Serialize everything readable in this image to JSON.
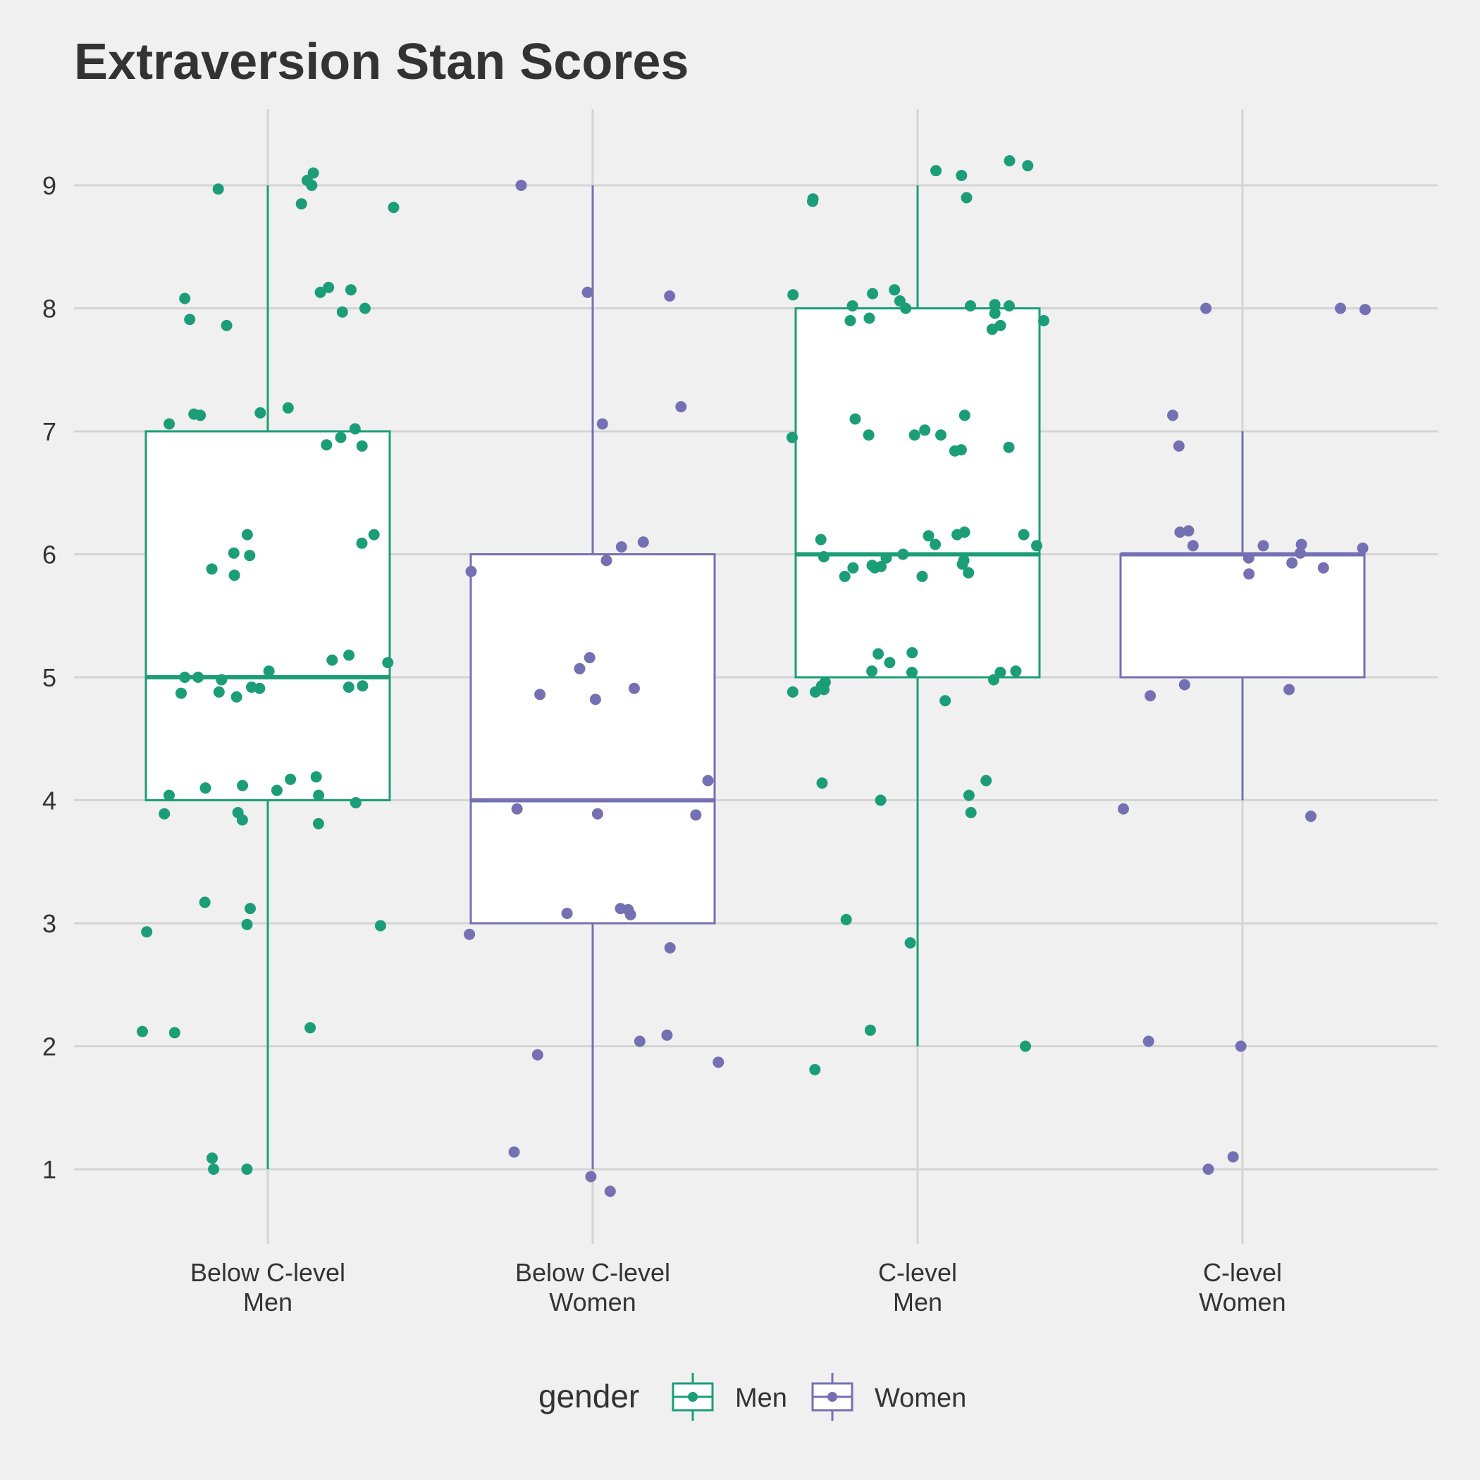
{
  "chart_data": {
    "type": "box",
    "title": "Extraversion Stan Scores",
    "xlabel": "",
    "ylabel": "",
    "ylim": [
      0.4,
      9.6
    ],
    "yticks": [
      1,
      2,
      3,
      4,
      5,
      6,
      7,
      8,
      9
    ],
    "grid": true,
    "legend": {
      "title": "gender",
      "placement": "bottom",
      "entries": [
        {
          "label": "Men",
          "color": "#1b9e77"
        },
        {
          "label": "Women",
          "color": "#7570b3"
        }
      ]
    },
    "categories": [
      {
        "label_line1": "Below C-level",
        "label_line2": "Men",
        "gender": "Men"
      },
      {
        "label_line1": "Below C-level",
        "label_line2": "Women",
        "gender": "Women"
      },
      {
        "label_line1": "C-level",
        "label_line2": "Men",
        "gender": "Men"
      },
      {
        "label_line1": "C-level",
        "label_line2": "Women",
        "gender": "Women"
      }
    ],
    "boxes": [
      {
        "category": 0,
        "lower_whisker": 1,
        "q1": 4,
        "median": 5,
        "q3": 7,
        "upper_whisker": 9
      },
      {
        "category": 1,
        "lower_whisker": 1,
        "q1": 3,
        "median": 4,
        "q3": 6,
        "upper_whisker": 9
      },
      {
        "category": 2,
        "lower_whisker": 2,
        "q1": 5,
        "median": 6,
        "q3": 8,
        "upper_whisker": 9
      },
      {
        "category": 3,
        "lower_whisker": 4,
        "q1": 5,
        "median": 6,
        "q3": 6,
        "upper_whisker": 7
      }
    ],
    "points": [
      {
        "category": 0,
        "values": [
          9.04,
          8.97,
          8.85,
          8.82,
          9.1,
          9.0,
          8.08,
          8.0,
          8.13,
          8.15,
          8.17,
          7.86,
          7.97,
          7.91,
          7.19,
          7.13,
          7.14,
          6.95,
          6.88,
          7.02,
          7.06,
          7.15,
          6.89,
          6.01,
          5.88,
          5.83,
          6.16,
          6.09,
          6.16,
          5.99,
          5.18,
          5.0,
          4.87,
          4.98,
          4.84,
          5.05,
          5.12,
          4.91,
          5.14,
          5.0,
          4.92,
          4.93,
          4.92,
          4.88,
          4.08,
          3.98,
          4.04,
          4.04,
          4.17,
          3.89,
          4.19,
          3.84,
          3.81,
          4.1,
          3.9,
          4.12,
          2.99,
          2.98,
          3.12,
          2.93,
          3.17,
          2.11,
          2.15,
          2.12,
          1.0,
          1.09,
          1.0
        ]
      },
      {
        "category": 1,
        "values": [
          9.0,
          8.1,
          8.13,
          7.06,
          7.2,
          6.06,
          6.1,
          5.86,
          5.95,
          5.07,
          4.82,
          4.91,
          4.86,
          5.16,
          4.16,
          3.93,
          3.89,
          3.88,
          3.12,
          2.91,
          3.11,
          3.07,
          3.08,
          2.8,
          2.04,
          1.93,
          2.09,
          1.87,
          0.94,
          1.14,
          0.82
        ]
      },
      {
        "category": 2,
        "values": [
          9.08,
          9.2,
          9.12,
          8.9,
          8.87,
          9.16,
          8.89,
          8.02,
          8.0,
          8.03,
          7.92,
          8.02,
          7.9,
          7.96,
          8.15,
          8.06,
          8.11,
          8.12,
          8.02,
          7.86,
          7.83,
          7.9,
          6.97,
          6.87,
          6.97,
          6.95,
          7.1,
          7.01,
          6.84,
          7.13,
          6.85,
          6.97,
          6.16,
          6.16,
          5.95,
          5.98,
          6.08,
          5.82,
          5.92,
          6.0,
          5.91,
          6.18,
          5.9,
          5.97,
          5.89,
          5.89,
          6.12,
          6.15,
          6.07,
          5.85,
          5.82,
          5.04,
          4.98,
          5.05,
          5.04,
          5.2,
          4.96,
          5.05,
          5.19,
          4.88,
          4.81,
          5.12,
          4.88,
          4.9,
          4.93,
          4.14,
          4.16,
          3.9,
          4.04,
          4.0,
          3.03,
          2.84,
          2.0,
          2.13,
          1.81
        ]
      },
      {
        "category": 3,
        "values": [
          8.0,
          8.0,
          7.99,
          7.13,
          6.88,
          6.07,
          6.05,
          6.18,
          6.08,
          6.07,
          5.89,
          6.19,
          5.97,
          6.01,
          5.84,
          5.93,
          4.9,
          4.94,
          4.85,
          3.87,
          3.93,
          2.04,
          2.0,
          1.1,
          1.0
        ]
      }
    ]
  }
}
